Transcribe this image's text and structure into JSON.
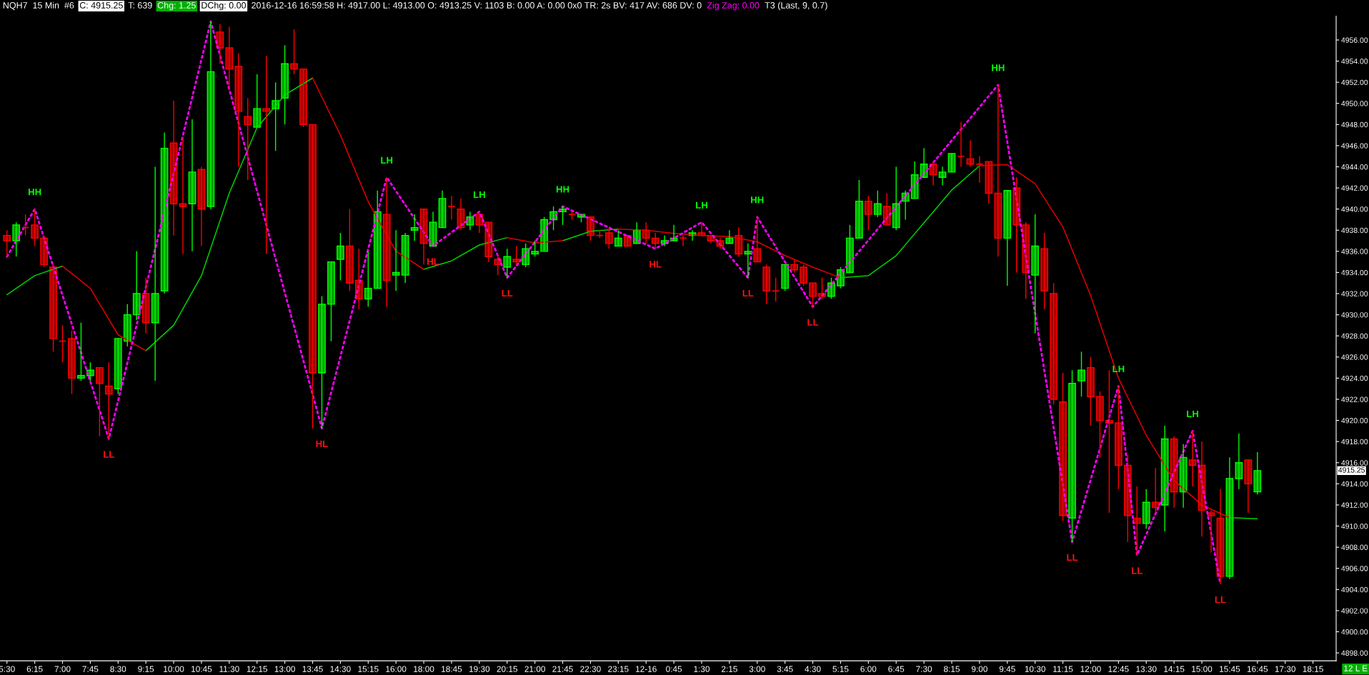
{
  "chart_data": {
    "type": "candlestick",
    "categories": [
      "5:30",
      null,
      null,
      "6:15",
      null,
      null,
      "7:00",
      null,
      null,
      "7:45",
      null,
      null,
      "8:30",
      null,
      null,
      "9:15",
      null,
      null,
      "10:00",
      null,
      null,
      "10:45",
      null,
      null,
      "11:30",
      null,
      null,
      "12:15",
      null,
      null,
      "13:00",
      null,
      null,
      "13:45",
      null,
      null,
      "14:30",
      null,
      null,
      "15:15",
      null,
      null,
      "16:00",
      null,
      null,
      "18:00",
      null,
      null,
      "18:45",
      null,
      null,
      "19:30",
      null,
      null,
      "20:15",
      null,
      null,
      "21:00",
      null,
      null,
      "21:45",
      null,
      null,
      "22:30",
      null,
      null,
      "23:15",
      null,
      null,
      "12-16",
      null,
      null,
      "0:45",
      null,
      null,
      "1:30",
      null,
      null,
      "2:15",
      null,
      null,
      "3:00",
      null,
      null,
      "3:45",
      null,
      null,
      "4:30",
      null,
      null,
      "5:15",
      null,
      null,
      "6:00",
      null,
      null,
      "6:45",
      null,
      null,
      "7:30",
      null,
      null,
      "8:15",
      null,
      null,
      "9:00",
      null,
      null,
      "9:45",
      null,
      null,
      "10:30",
      null,
      null,
      "11:15",
      null,
      null,
      "12:00",
      null,
      null,
      "12:45",
      null,
      null,
      "13:30",
      null,
      null,
      "14:15",
      null,
      null,
      "15:00",
      null,
      null,
      "15:45",
      null,
      null,
      "16:45",
      null,
      null,
      "17:30",
      null,
      null,
      "18:15",
      null,
      null
    ],
    "ohlc": [
      [
        4937.5,
        4938.0,
        4935.5,
        4937.0
      ],
      [
        4937.0,
        4938.75,
        4935.5,
        4938.5
      ],
      [
        4938.25,
        4939.5,
        4937.5,
        4938.25
      ],
      [
        4938.5,
        4940.0,
        4936.5,
        4937.25
      ],
      [
        4937.25,
        4937.5,
        4934.5,
        4934.75
      ],
      [
        4934.5,
        4934.75,
        4926.5,
        4927.75
      ],
      [
        4927.5,
        4929.0,
        4925.5,
        4927.5
      ],
      [
        4927.75,
        4928.5,
        4922.5,
        4924.0
      ],
      [
        4924.0,
        4929.25,
        4923.75,
        4924.25
      ],
      [
        4924.25,
        4925.5,
        4923.75,
        4924.75
      ],
      [
        4925.0,
        4925.0,
        4918.5,
        4923.5
      ],
      [
        4923.25,
        4925.5,
        4918.25,
        4922.5
      ],
      [
        4923.0,
        4927.75,
        4922.5,
        4927.75
      ],
      [
        4927.5,
        4931.0,
        4927.0,
        4930.0
      ],
      [
        4930.0,
        4936.0,
        4929.5,
        4932.0
      ],
      [
        4932.0,
        4933.5,
        4928.25,
        4929.25
      ],
      [
        4929.25,
        4944.0,
        4923.75,
        4932.0
      ],
      [
        4932.25,
        4947.25,
        4932.0,
        4945.75
      ],
      [
        4946.25,
        4950.25,
        4937.5,
        4940.5
      ],
      [
        4940.5,
        4946.75,
        4935.75,
        4940.25
      ],
      [
        4940.5,
        4948.5,
        4936.0,
        4943.5
      ],
      [
        4943.75,
        4944.0,
        4936.5,
        4940.0
      ],
      [
        4940.25,
        4957.75,
        4940.0,
        4953.0
      ],
      [
        4956.75,
        4957.5,
        4953.75,
        4955.25
      ],
      [
        4955.25,
        4957.25,
        4951.25,
        4953.25
      ],
      [
        4953.5,
        4954.75,
        4944.0,
        4949.25
      ],
      [
        4948.75,
        4950.5,
        4942.75,
        4948.0
      ],
      [
        4947.75,
        4952.75,
        4947.75,
        4949.5
      ],
      [
        4949.5,
        4954.5,
        4935.75,
        4949.25
      ],
      [
        4949.5,
        4952.0,
        4945.5,
        4950.25
      ],
      [
        4950.5,
        4955.5,
        4948.0,
        4953.75
      ],
      [
        4953.75,
        4957.0,
        4952.75,
        4953.25
      ],
      [
        4953.25,
        4953.25,
        4947.75,
        4948.0
      ],
      [
        4948.0,
        4948.0,
        4919.25,
        4924.5
      ],
      [
        4924.5,
        4931.75,
        4919.25,
        4931.0
      ],
      [
        4931.0,
        4935.0,
        4927.5,
        4935.0
      ],
      [
        4935.25,
        4937.75,
        4933.25,
        4936.5
      ],
      [
        4936.5,
        4940.0,
        4932.25,
        4933.0
      ],
      [
        4933.25,
        4936.25,
        4930.5,
        4931.5
      ],
      [
        4931.5,
        4936.0,
        4930.75,
        4932.5
      ],
      [
        4932.5,
        4941.75,
        4932.5,
        4939.75
      ],
      [
        4939.5,
        4943.0,
        4930.75,
        4933.25
      ],
      [
        4933.75,
        4938.0,
        4932.25,
        4934.0
      ],
      [
        4933.75,
        4937.75,
        4933.0,
        4937.5
      ],
      [
        4938.0,
        4939.5,
        4937.0,
        4938.25
      ],
      [
        4940.0,
        4940.0,
        4934.75,
        4936.75
      ],
      [
        4936.5,
        4939.75,
        4936.5,
        4938.75
      ],
      [
        4938.25,
        4941.75,
        4938.25,
        4941.0
      ],
      [
        4940.25,
        4941.25,
        4939.0,
        4940.25
      ],
      [
        4940.0,
        4941.0,
        4938.0,
        4938.25
      ],
      [
        4938.5,
        4939.75,
        4938.0,
        4939.25
      ],
      [
        4939.5,
        4939.75,
        4937.75,
        4938.5
      ],
      [
        4938.75,
        4938.75,
        4935.0,
        4935.5
      ],
      [
        4935.25,
        4935.75,
        4933.75,
        4934.75
      ],
      [
        4934.5,
        4936.25,
        4933.5,
        4935.5
      ],
      [
        4935.25,
        4936.5,
        4934.75,
        4935.0
      ],
      [
        4934.75,
        4936.75,
        4934.5,
        4936.25
      ],
      [
        4935.75,
        4937.0,
        4935.5,
        4936.0
      ],
      [
        4936.0,
        4939.25,
        4936.0,
        4939.0
      ],
      [
        4939.0,
        4940.25,
        4938.0,
        4939.75
      ],
      [
        4939.75,
        4940.25,
        4938.5,
        4940.0
      ],
      [
        4939.5,
        4939.75,
        4939.0,
        4939.5
      ],
      [
        4939.25,
        4939.5,
        4938.75,
        4939.5
      ],
      [
        4939.25,
        4939.25,
        4937.0,
        4937.5
      ],
      [
        4937.5,
        4938.0,
        4937.25,
        4937.5
      ],
      [
        4937.75,
        4938.25,
        4936.25,
        4936.75
      ],
      [
        4936.5,
        4938.0,
        4936.5,
        4937.25
      ],
      [
        4937.5,
        4937.5,
        4936.5,
        4936.5
      ],
      [
        4936.75,
        4938.75,
        4936.75,
        4938.0
      ],
      [
        4938.0,
        4938.75,
        4936.75,
        4937.25
      ],
      [
        4937.25,
        4937.75,
        4936.25,
        4936.75
      ],
      [
        4936.75,
        4937.5,
        4936.5,
        4937.0
      ],
      [
        4937.0,
        4938.5,
        4937.0,
        4937.25
      ],
      [
        4937.25,
        4937.5,
        4936.5,
        4937.25
      ],
      [
        4937.5,
        4938.0,
        4937.0,
        4937.75
      ],
      [
        4937.75,
        4938.75,
        4937.5,
        4937.5
      ],
      [
        4937.5,
        4937.5,
        4936.75,
        4937.0
      ],
      [
        4937.0,
        4937.25,
        4936.25,
        4936.5
      ],
      [
        4936.75,
        4938.0,
        4936.75,
        4937.25
      ],
      [
        4937.5,
        4938.25,
        4935.5,
        4935.75
      ],
      [
        4935.75,
        4936.75,
        4933.5,
        4936.0
      ],
      [
        4936.25,
        4939.25,
        4935.0,
        4935.0
      ],
      [
        4934.5,
        4934.75,
        4931.0,
        4932.25
      ],
      [
        4932.25,
        4933.5,
        4931.25,
        4932.25
      ],
      [
        4932.5,
        4934.75,
        4932.25,
        4934.75
      ],
      [
        4934.75,
        4935.25,
        4934.0,
        4934.25
      ],
      [
        4934.5,
        4934.75,
        4932.75,
        4933.0
      ],
      [
        4933.0,
        4933.0,
        4930.75,
        4931.75
      ],
      [
        4932.0,
        4933.5,
        4931.5,
        4931.75
      ],
      [
        4931.75,
        4933.5,
        4931.5,
        4933.0
      ],
      [
        4932.75,
        4934.5,
        4932.5,
        4934.25
      ],
      [
        4934.0,
        4938.5,
        4934.0,
        4937.25
      ],
      [
        4937.25,
        4942.75,
        4937.25,
        4940.75
      ],
      [
        4940.75,
        4941.25,
        4938.0,
        4939.5
      ],
      [
        4939.5,
        4941.75,
        4939.25,
        4940.5
      ],
      [
        4940.25,
        4941.5,
        4938.5,
        4938.5
      ],
      [
        4938.25,
        4944.0,
        4938.0,
        4940.5
      ],
      [
        4940.75,
        4941.75,
        4939.0,
        4941.5
      ],
      [
        4941.0,
        4944.5,
        4941.0,
        4943.25
      ],
      [
        4943.0,
        4945.75,
        4943.0,
        4944.25
      ],
      [
        4944.25,
        4944.5,
        4942.25,
        4943.25
      ],
      [
        4943.0,
        4944.0,
        4942.25,
        4943.5
      ],
      [
        4943.5,
        4945.25,
        4943.5,
        4945.25
      ],
      [
        4945.0,
        4948.25,
        4944.0,
        4945.0
      ],
      [
        4944.75,
        4946.5,
        4944.0,
        4944.25
      ],
      [
        4944.25,
        4945.0,
        4942.5,
        4944.25
      ],
      [
        4944.5,
        4944.5,
        4940.5,
        4941.5
      ],
      [
        4941.5,
        4951.75,
        4935.5,
        4937.25
      ],
      [
        4937.25,
        4941.75,
        4932.75,
        4941.75
      ],
      [
        4942.0,
        4943.0,
        4934.0,
        4938.5
      ],
      [
        4938.5,
        4938.75,
        4931.5,
        4934.0
      ],
      [
        4933.75,
        4939.5,
        4928.25,
        4936.5
      ],
      [
        4936.25,
        4937.75,
        4930.5,
        4932.25
      ],
      [
        4932.0,
        4933.0,
        4921.5,
        4922.0
      ],
      [
        4921.75,
        4924.5,
        4910.5,
        4911.0
      ],
      [
        4910.75,
        4924.75,
        4908.5,
        4923.5
      ],
      [
        4923.75,
        4926.5,
        4922.25,
        4924.75
      ],
      [
        4925.0,
        4926.0,
        4919.5,
        4922.25
      ],
      [
        4922.25,
        4922.75,
        4916.5,
        4920.0
      ],
      [
        4920.0,
        4924.75,
        4911.25,
        4919.75
      ],
      [
        4919.75,
        4923.25,
        4913.5,
        4915.75
      ],
      [
        4915.75,
        4916.75,
        4908.5,
        4911.0
      ],
      [
        4910.75,
        4913.75,
        4907.25,
        4910.25
      ],
      [
        4910.25,
        4913.5,
        4909.75,
        4912.25
      ],
      [
        4912.25,
        4915.5,
        4911.25,
        4911.75
      ],
      [
        4912.0,
        4919.5,
        4909.5,
        4918.25
      ],
      [
        4918.25,
        4918.5,
        4911.75,
        4913.25
      ],
      [
        4913.25,
        4917.75,
        4911.75,
        4916.5
      ],
      [
        4916.25,
        4919.0,
        4913.75,
        4915.75
      ],
      [
        4915.75,
        4918.0,
        4909.0,
        4911.5
      ],
      [
        4911.25,
        4911.5,
        4907.5,
        4911.0
      ],
      [
        4910.75,
        4913.5,
        4904.5,
        4905.25
      ],
      [
        4905.25,
        4916.5,
        4905.0,
        4914.5
      ],
      [
        4914.5,
        4918.75,
        4913.5,
        4916.0
      ],
      [
        4916.25,
        4916.25,
        4911.25,
        4914.0
      ],
      [
        4913.25,
        4917.0,
        4913.0,
        4915.25
      ],
      null,
      null,
      null,
      null,
      null,
      null,
      null,
      null
    ],
    "series": [
      {
        "type": "line",
        "x": [
          "5:30",
          "6:15",
          "7:00",
          "7:45",
          "8:30",
          "9:15",
          "10:00",
          "10:45",
          "11:30",
          "12:15",
          "13:00",
          "13:45",
          "14:30",
          "15:15",
          "16:00",
          "18:00",
          "18:45",
          "19:30",
          "20:15",
          "21:00",
          "21:45",
          "22:30",
          "23:15",
          "12-16",
          "0:45",
          "1:30",
          "2:15",
          "3:00",
          "3:45",
          "4:30",
          "5:15",
          "6:00",
          "6:45",
          "7:30",
          "8:15",
          "9:00",
          "9:45",
          "10:30",
          "11:15",
          "12:00",
          "12:45",
          "13:30",
          "14:15",
          "15:00",
          "15:45",
          "16:45"
        ],
        "color": "#00d000",
        "values": [
          4931.9,
          4933.7,
          4934.6,
          null,
          null,
          4926.6,
          4929.0,
          4933.7,
          4941.5,
          4947.7,
          4950.8,
          4952.4,
          null,
          null,
          null,
          4934.3,
          4935.1,
          4936.6,
          4937.3,
          null,
          4937.0,
          4937.9,
          4938.1,
          null,
          null,
          null,
          null,
          null,
          null,
          null,
          4933.5,
          4933.7,
          4935.6,
          4938.7,
          4941.8,
          4944.1,
          null,
          null,
          null,
          null,
          null,
          null,
          null,
          null,
          4910.8,
          4910.7
        ]
      },
      {
        "type": "line",
        "x": [
          "5:30",
          "6:15",
          "7:00",
          "7:45",
          "8:30",
          "9:15",
          "10:00",
          "10:45",
          "11:30",
          "12:15",
          "13:00",
          "13:45",
          "14:30",
          "15:15",
          "16:00",
          "18:00",
          "18:45",
          "19:30",
          "20:15",
          "21:00",
          "21:45",
          "22:30",
          "23:15",
          "12-16",
          "0:45",
          "1:30",
          "2:15",
          "3:00",
          "3:45",
          "4:30",
          "5:15",
          "6:00",
          "6:45",
          "7:30",
          "8:15",
          "9:00",
          "9:45",
          "10:30",
          "11:15",
          "12:00",
          "12:45",
          "13:30",
          "14:15",
          "15:00",
          "15:45",
          "16:45"
        ],
        "color": "#e00000",
        "values": [
          null,
          null,
          4934.6,
          4932.5,
          4928.1,
          4926.6,
          null,
          null,
          null,
          null,
          null,
          4952.4,
          4947.0,
          4940.7,
          4936.0,
          4934.3,
          null,
          null,
          4937.3,
          4936.8,
          4937.0,
          null,
          4938.1,
          4938.0,
          4937.7,
          4937.5,
          4937.4,
          4936.9,
          4935.6,
          4934.5,
          4933.5,
          null,
          null,
          null,
          null,
          4944.1,
          4944.2,
          4942.4,
          4938.3,
          4931.8,
          4924.0,
          4918.6,
          4914.3,
          4912.0,
          4910.8,
          null
        ]
      },
      {
        "type": "line",
        "color": "#ff00ff",
        "line_style": "dotted",
        "values": [
          4935.5,
          null,
          null,
          4940.0,
          null,
          null,
          null,
          null,
          null,
          null,
          null,
          4918.25,
          null,
          null,
          null,
          null,
          null,
          null,
          null,
          null,
          null,
          null,
          4957.75,
          null,
          null,
          null,
          null,
          null,
          null,
          null,
          null,
          null,
          null,
          null,
          4919.25,
          null,
          null,
          null,
          null,
          null,
          null,
          4943.0,
          null,
          null,
          null,
          null,
          4936.5,
          null,
          null,
          null,
          null,
          4939.75,
          null,
          null,
          4933.5,
          null,
          null,
          null,
          null,
          null,
          4940.25,
          null,
          null,
          null,
          null,
          null,
          null,
          null,
          null,
          null,
          4936.25,
          null,
          null,
          null,
          null,
          4938.75,
          null,
          null,
          null,
          null,
          4933.5,
          4939.25,
          null,
          null,
          null,
          null,
          null,
          4930.75,
          null,
          null,
          null,
          null,
          null,
          null,
          null,
          null,
          null,
          null,
          null,
          null,
          null,
          null,
          null,
          null,
          null,
          null,
          null,
          4951.75,
          null,
          null,
          null,
          null,
          null,
          null,
          null,
          4908.5,
          null,
          null,
          null,
          null,
          4923.25,
          null,
          4907.25,
          null,
          null,
          null,
          null,
          null,
          4919.0,
          null,
          null,
          4904.5,
          null,
          null,
          null,
          null,
          null,
          null,
          null,
          null,
          null,
          null,
          null,
          null
        ],
        "value_labels": [
          null,
          null,
          null,
          "HH",
          null,
          null,
          null,
          null,
          null,
          null,
          null,
          "LL",
          null,
          null,
          null,
          null,
          null,
          null,
          null,
          null,
          null,
          null,
          null,
          null,
          null,
          null,
          null,
          null,
          null,
          null,
          null,
          null,
          null,
          null,
          "HL",
          null,
          null,
          null,
          null,
          null,
          null,
          "LH",
          null,
          null,
          null,
          null,
          "HL",
          null,
          null,
          null,
          null,
          "LH",
          null,
          null,
          "LL",
          null,
          null,
          null,
          null,
          null,
          "HH",
          null,
          null,
          null,
          null,
          null,
          null,
          null,
          null,
          null,
          "HL",
          null,
          null,
          null,
          null,
          "LH",
          null,
          null,
          null,
          null,
          "LL",
          "HH",
          null,
          null,
          null,
          null,
          null,
          "LL",
          null,
          null,
          null,
          null,
          null,
          null,
          null,
          null,
          null,
          null,
          null,
          null,
          null,
          null,
          null,
          null,
          null,
          null,
          null,
          "HH",
          null,
          null,
          null,
          null,
          null,
          null,
          null,
          "LL",
          null,
          null,
          null,
          null,
          "LH",
          null,
          "LL",
          null,
          null,
          null,
          null,
          null,
          "LH",
          null,
          null,
          "LL",
          null,
          null,
          null,
          null,
          null,
          null,
          null,
          null,
          null,
          null,
          null,
          null
        ]
      }
    ],
    "ylim": [
      4897.25,
      4958.25
    ],
    "yticks": [
      {
        "value": 4898,
        "label": "4898.00"
      },
      {
        "value": 4900,
        "label": "4900.00"
      },
      {
        "value": 4902,
        "label": "4902.00"
      },
      {
        "value": 4904,
        "label": "4904.00"
      },
      {
        "value": 4906,
        "label": "4906.00"
      },
      {
        "value": 4908,
        "label": "4908.00"
      },
      {
        "value": 4910,
        "label": "4910.00"
      },
      {
        "value": 4912,
        "label": "4912.00"
      },
      {
        "value": 4914,
        "label": "4914.00"
      },
      {
        "value": 4916,
        "label": "4916.00"
      },
      {
        "value": 4918,
        "label": "4918.00"
      },
      {
        "value": 4920,
        "label": "4920.00"
      },
      {
        "value": 4922,
        "label": "4922.00"
      },
      {
        "value": 4924,
        "label": "4924.00"
      },
      {
        "value": 4926,
        "label": "4926.00"
      },
      {
        "value": 4928,
        "label": "4928.00"
      },
      {
        "value": 4930,
        "label": "4930.00"
      },
      {
        "value": 4932,
        "label": "4932.00"
      },
      {
        "value": 4934,
        "label": "4934.00"
      },
      {
        "value": 4936,
        "label": "4936.00"
      },
      {
        "value": 4938,
        "label": "4938.00"
      },
      {
        "value": 4940,
        "label": "4940.00"
      },
      {
        "value": 4942,
        "label": "4942.00"
      },
      {
        "value": 4944,
        "label": "4944.00"
      },
      {
        "value": 4946,
        "label": "4946.00"
      },
      {
        "value": 4948,
        "label": "4948.00"
      },
      {
        "value": 4950,
        "label": "4950.00"
      },
      {
        "value": 4952,
        "label": "4952.00"
      },
      {
        "value": 4954,
        "label": "4954.00"
      },
      {
        "value": 4956,
        "label": "4956.00"
      }
    ],
    "grid": false,
    "annotations": [
      "NQH7  15 Min  #6",
      "C: 4915.25",
      "T: 639",
      "Chg: 1.25",
      "DChg: 0.00",
      "2016-12-16 16:59:58 H: 4917.00 L: 4913.00 O: 4913.25 V: 1103 B: 0.00 A: 0.00 0x0 TR: 2s BV: 417 AV: 686 DV: 0",
      "Zig Zag: 0.00",
      "T3 (Last, 9, 0.7)",
      "12 L E",
      {
        "text": "4915.25",
        "y": 4915.25
      }
    ]
  }
}
